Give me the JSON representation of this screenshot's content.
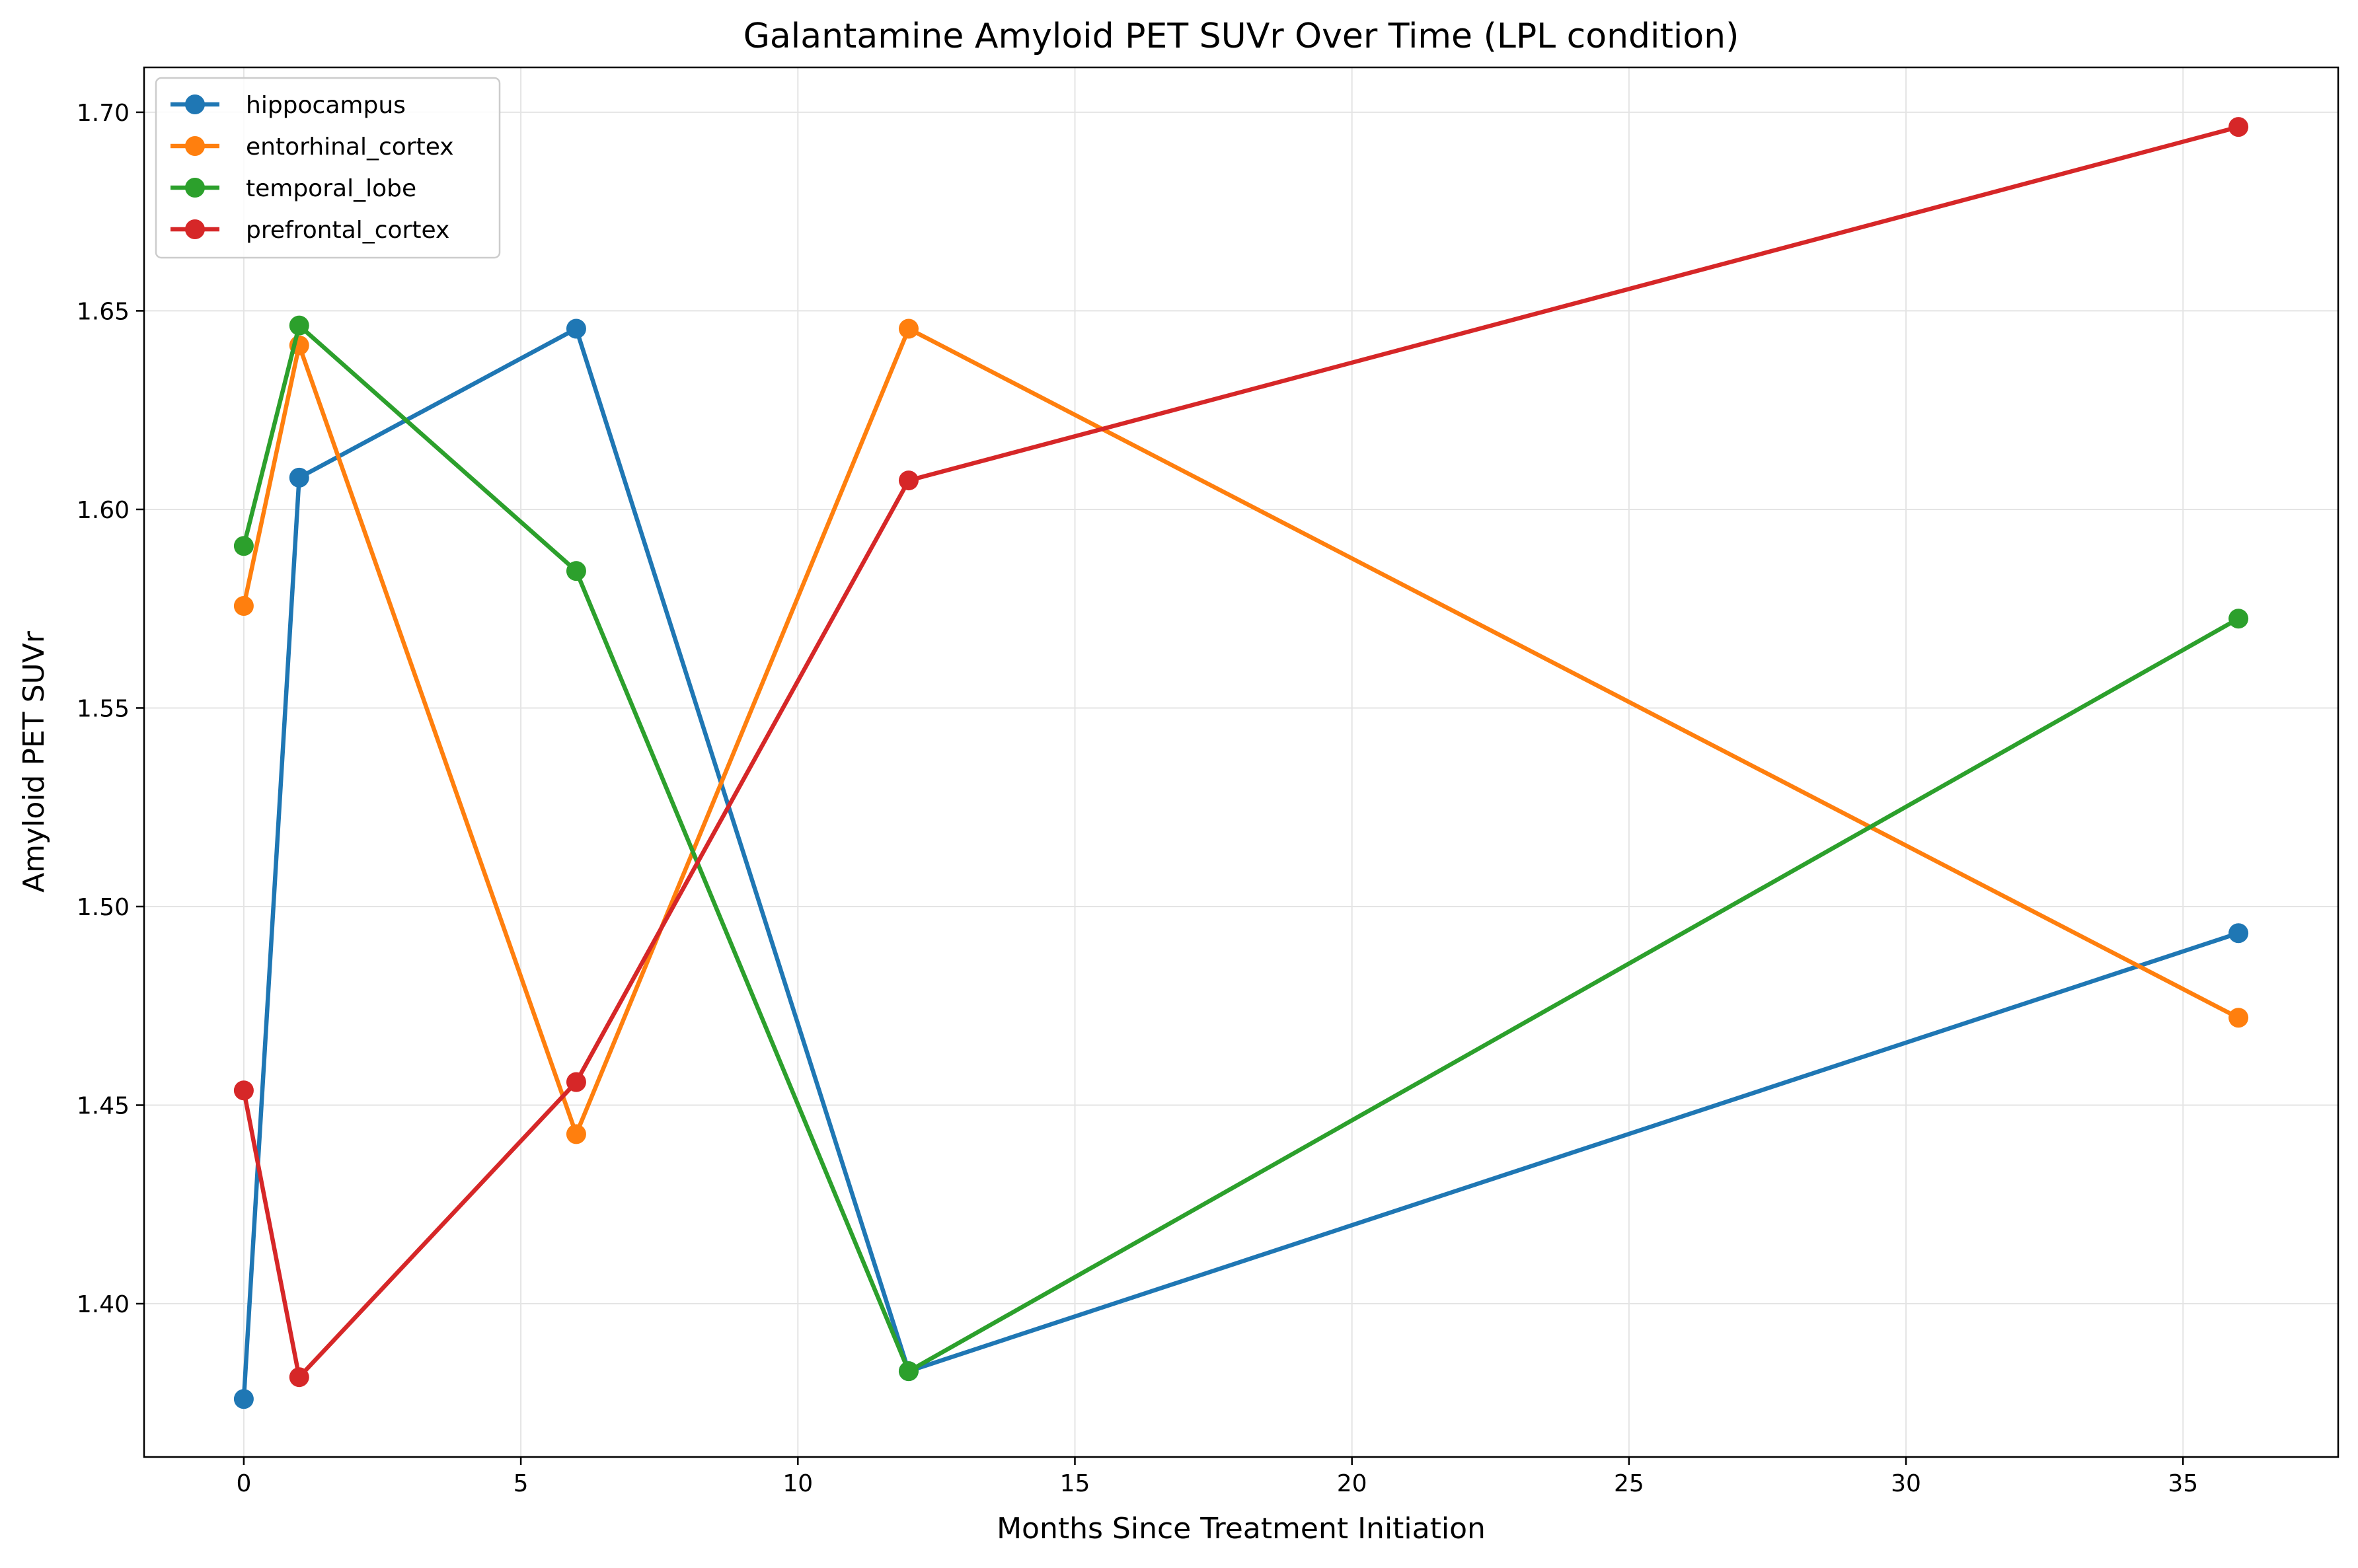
{
  "chart_data": {
    "type": "line",
    "title": "Galantamine Amyloid PET SUVr Over Time (LPL condition)",
    "xlabel": "Months Since Treatment Initiation",
    "ylabel": "Amyloid PET SUVr",
    "xlim": [
      -1.8,
      37.8
    ],
    "ylim": [
      1.3614,
      1.7113
    ],
    "xticks": [
      0,
      5,
      10,
      15,
      20,
      25,
      30,
      35
    ],
    "xtick_labels": [
      "0",
      "5",
      "10",
      "15",
      "20",
      "25",
      "30",
      "35"
    ],
    "yticks": [
      1.4,
      1.45,
      1.5,
      1.55,
      1.6,
      1.65,
      1.7
    ],
    "ytick_labels": [
      "1.40",
      "1.45",
      "1.50",
      "1.55",
      "1.60",
      "1.65",
      "1.70"
    ],
    "grid": true,
    "legend_position": "top-left",
    "x": [
      0,
      1,
      6,
      12,
      36
    ],
    "series": [
      {
        "name": "hippocampus",
        "color": "#1f77b4",
        "values": [
          1.376,
          1.608,
          1.6455,
          1.383,
          1.4933
        ]
      },
      {
        "name": "entorhinal_cortex",
        "color": "#ff7f0e",
        "values": [
          1.5757,
          1.6413,
          1.4427,
          1.6455,
          1.472
        ]
      },
      {
        "name": "temporal_lobe",
        "color": "#2ca02c",
        "values": [
          1.5908,
          1.6463,
          1.5845,
          1.383,
          1.5725
        ]
      },
      {
        "name": "prefrontal_cortex",
        "color": "#d62728",
        "values": [
          1.4537,
          1.3815,
          1.4558,
          1.6073,
          1.6963
        ]
      }
    ]
  }
}
